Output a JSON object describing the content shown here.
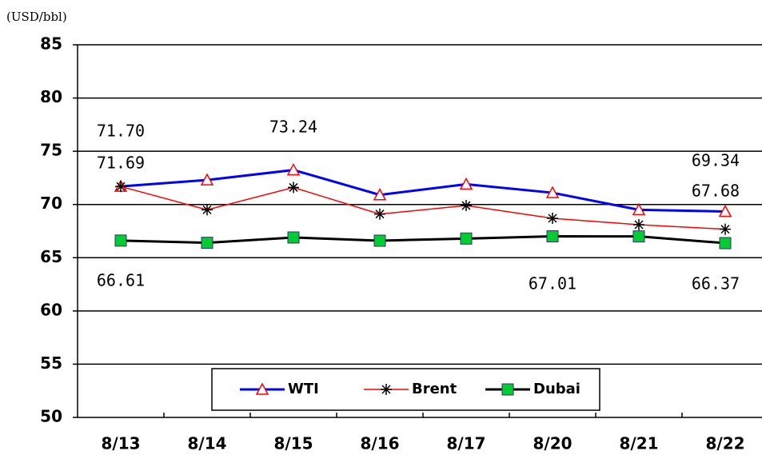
{
  "chart_data": {
    "type": "line",
    "unit_label": "(USD/bbl)",
    "categories": [
      "8/13",
      "8/14",
      "8/15",
      "8/16",
      "8/17",
      "8/20",
      "8/21",
      "8/22"
    ],
    "series": [
      {
        "name": "WTI",
        "color": "#0000ff",
        "marker": "triangle",
        "marker_color": "#ff0000",
        "values": [
          71.7,
          72.3,
          73.24,
          70.9,
          71.9,
          71.1,
          69.5,
          69.34
        ],
        "value_labels": [
          "71.70",
          null,
          "73.24",
          null,
          null,
          null,
          null,
          "69.34"
        ]
      },
      {
        "name": "Brent",
        "color": "#ff0000",
        "marker": "asterisk",
        "marker_color": "#000000",
        "values": [
          71.69,
          69.5,
          71.6,
          69.1,
          69.9,
          68.7,
          68.1,
          67.68
        ],
        "value_labels": [
          "71.69",
          null,
          null,
          null,
          null,
          null,
          null,
          "67.68"
        ]
      },
      {
        "name": "Dubai",
        "color": "#000000",
        "marker": "square",
        "marker_color": "#00cc33",
        "values": [
          66.61,
          66.4,
          66.9,
          66.6,
          66.8,
          67.01,
          67.0,
          66.37
        ],
        "value_labels": [
          "66.61",
          null,
          null,
          null,
          null,
          "67.01",
          null,
          "66.37"
        ]
      }
    ],
    "ylim": [
      50,
      85
    ],
    "yticks": [
      50,
      55,
      60,
      65,
      70,
      75,
      80,
      85
    ],
    "grid": true,
    "legend": "bottom"
  }
}
